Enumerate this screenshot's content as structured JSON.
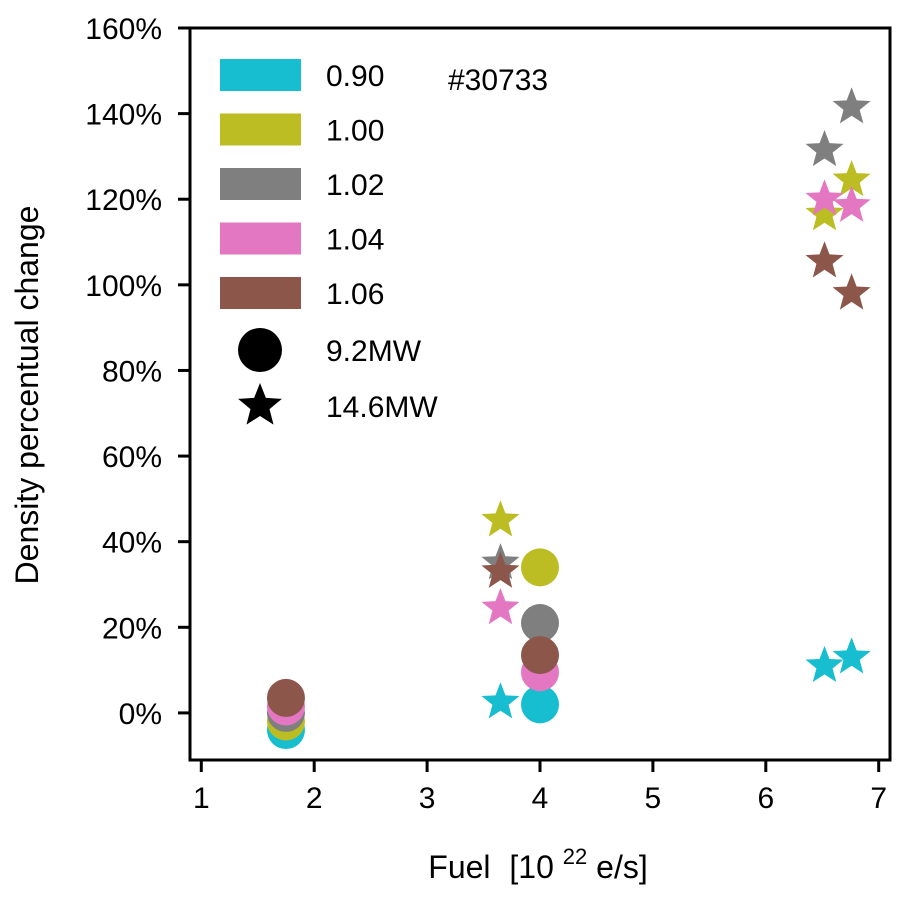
{
  "chart_data": {
    "type": "scatter",
    "title": "",
    "xlabel_main": "Fuel",
    "xlabel_unit_prefix": "[10",
    "xlabel_unit_exp": "22",
    "xlabel_unit_suffix": "e/s]",
    "ylabel": "Density percentual change",
    "xlim": [
      0.9,
      7.1
    ],
    "ylim": [
      -11,
      160
    ],
    "xticks": [
      1,
      2,
      3,
      4,
      5,
      6,
      7
    ],
    "yticks": [
      0,
      20,
      40,
      60,
      80,
      100,
      120,
      140,
      160
    ],
    "ytick_labels": [
      "0%",
      "20%",
      "40%",
      "60%",
      "80%",
      "100%",
      "120%",
      "140%",
      "160%"
    ],
    "annotation": "#30733",
    "legend_position": "top-left",
    "grid": false,
    "series": [
      {
        "name": "0.90",
        "color": "#17becf"
      },
      {
        "name": "1.00",
        "color": "#bcbd22"
      },
      {
        "name": "1.02",
        "color": "#7f7f7f"
      },
      {
        "name": "1.04",
        "color": "#e377c2"
      },
      {
        "name": "1.06",
        "color": "#8c564b"
      }
    ],
    "markers": [
      {
        "name": "9.2MW",
        "shape": "circle"
      },
      {
        "name": "14.6MW",
        "shape": "star"
      }
    ],
    "points": [
      {
        "x": 1.75,
        "y": -4,
        "series": "0.90",
        "marker": "9.2MW"
      },
      {
        "x": 1.75,
        "y": -2,
        "series": "1.00",
        "marker": "9.2MW"
      },
      {
        "x": 1.75,
        "y": 0,
        "series": "1.02",
        "marker": "9.2MW"
      },
      {
        "x": 1.75,
        "y": 1.5,
        "series": "1.04",
        "marker": "9.2MW"
      },
      {
        "x": 1.75,
        "y": 3.5,
        "series": "1.06",
        "marker": "9.2MW"
      },
      {
        "x": 4.0,
        "y": 2,
        "series": "0.90",
        "marker": "9.2MW"
      },
      {
        "x": 4.0,
        "y": 34,
        "series": "1.00",
        "marker": "9.2MW"
      },
      {
        "x": 4.0,
        "y": 21,
        "series": "1.02",
        "marker": "9.2MW"
      },
      {
        "x": 4.0,
        "y": 9.5,
        "series": "1.04",
        "marker": "9.2MW"
      },
      {
        "x": 4.0,
        "y": 13.5,
        "series": "1.06",
        "marker": "9.2MW"
      },
      {
        "x": 3.65,
        "y": 2.5,
        "series": "0.90",
        "marker": "14.6MW"
      },
      {
        "x": 3.65,
        "y": 45,
        "series": "1.00",
        "marker": "14.6MW"
      },
      {
        "x": 3.65,
        "y": 35,
        "series": "1.02",
        "marker": "14.6MW"
      },
      {
        "x": 3.65,
        "y": 24.5,
        "series": "1.04",
        "marker": "14.6MW"
      },
      {
        "x": 3.65,
        "y": 33,
        "series": "1.06",
        "marker": "14.6MW"
      },
      {
        "x": 6.52,
        "y": 11,
        "series": "0.90",
        "marker": "14.6MW"
      },
      {
        "x": 6.76,
        "y": 13,
        "series": "0.90",
        "marker": "14.6MW"
      },
      {
        "x": 6.52,
        "y": 116.5,
        "series": "1.00",
        "marker": "14.6MW"
      },
      {
        "x": 6.76,
        "y": 124.5,
        "series": "1.00",
        "marker": "14.6MW"
      },
      {
        "x": 6.52,
        "y": 131.5,
        "series": "1.02",
        "marker": "14.6MW"
      },
      {
        "x": 6.76,
        "y": 141.5,
        "series": "1.02",
        "marker": "14.6MW"
      },
      {
        "x": 6.52,
        "y": 120,
        "series": "1.04",
        "marker": "14.6MW"
      },
      {
        "x": 6.76,
        "y": 118.5,
        "series": "1.04",
        "marker": "14.6MW"
      },
      {
        "x": 6.52,
        "y": 105.5,
        "series": "1.06",
        "marker": "14.6MW"
      },
      {
        "x": 6.76,
        "y": 98,
        "series": "1.06",
        "marker": "14.6MW"
      }
    ]
  }
}
